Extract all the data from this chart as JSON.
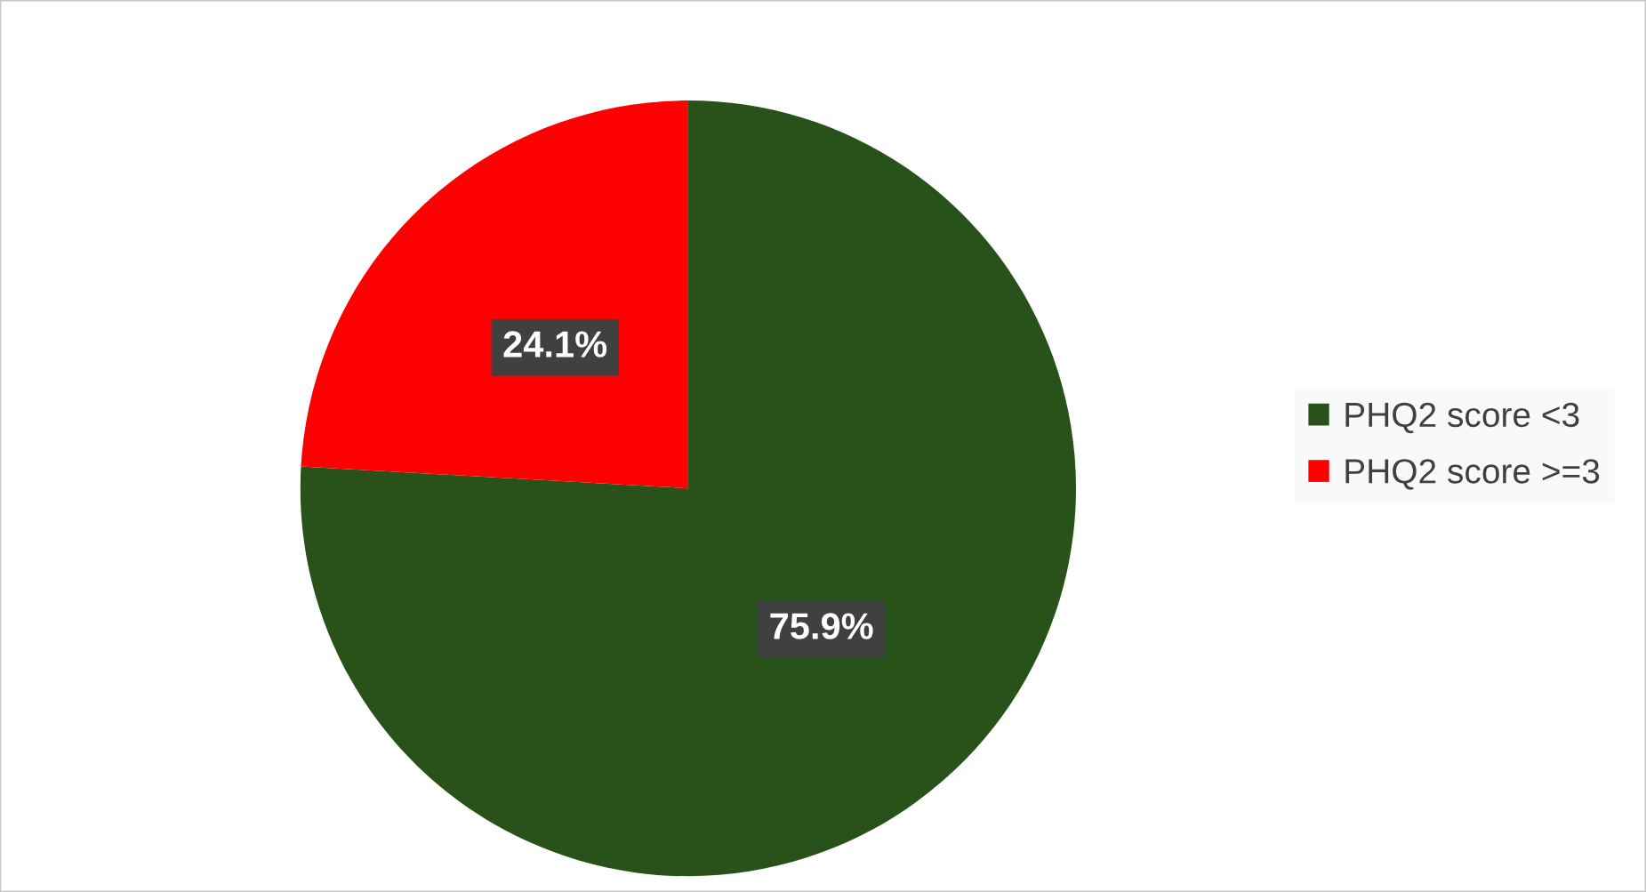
{
  "chart_data": {
    "type": "pie",
    "categories": [
      "PHQ2 score <3",
      "PHQ2 score >=3"
    ],
    "values": [
      75.9,
      24.1
    ],
    "colors": [
      "#285219",
      "#ff0000"
    ],
    "value_labels": [
      "75.9%",
      "24.1%"
    ],
    "legend": "right"
  }
}
